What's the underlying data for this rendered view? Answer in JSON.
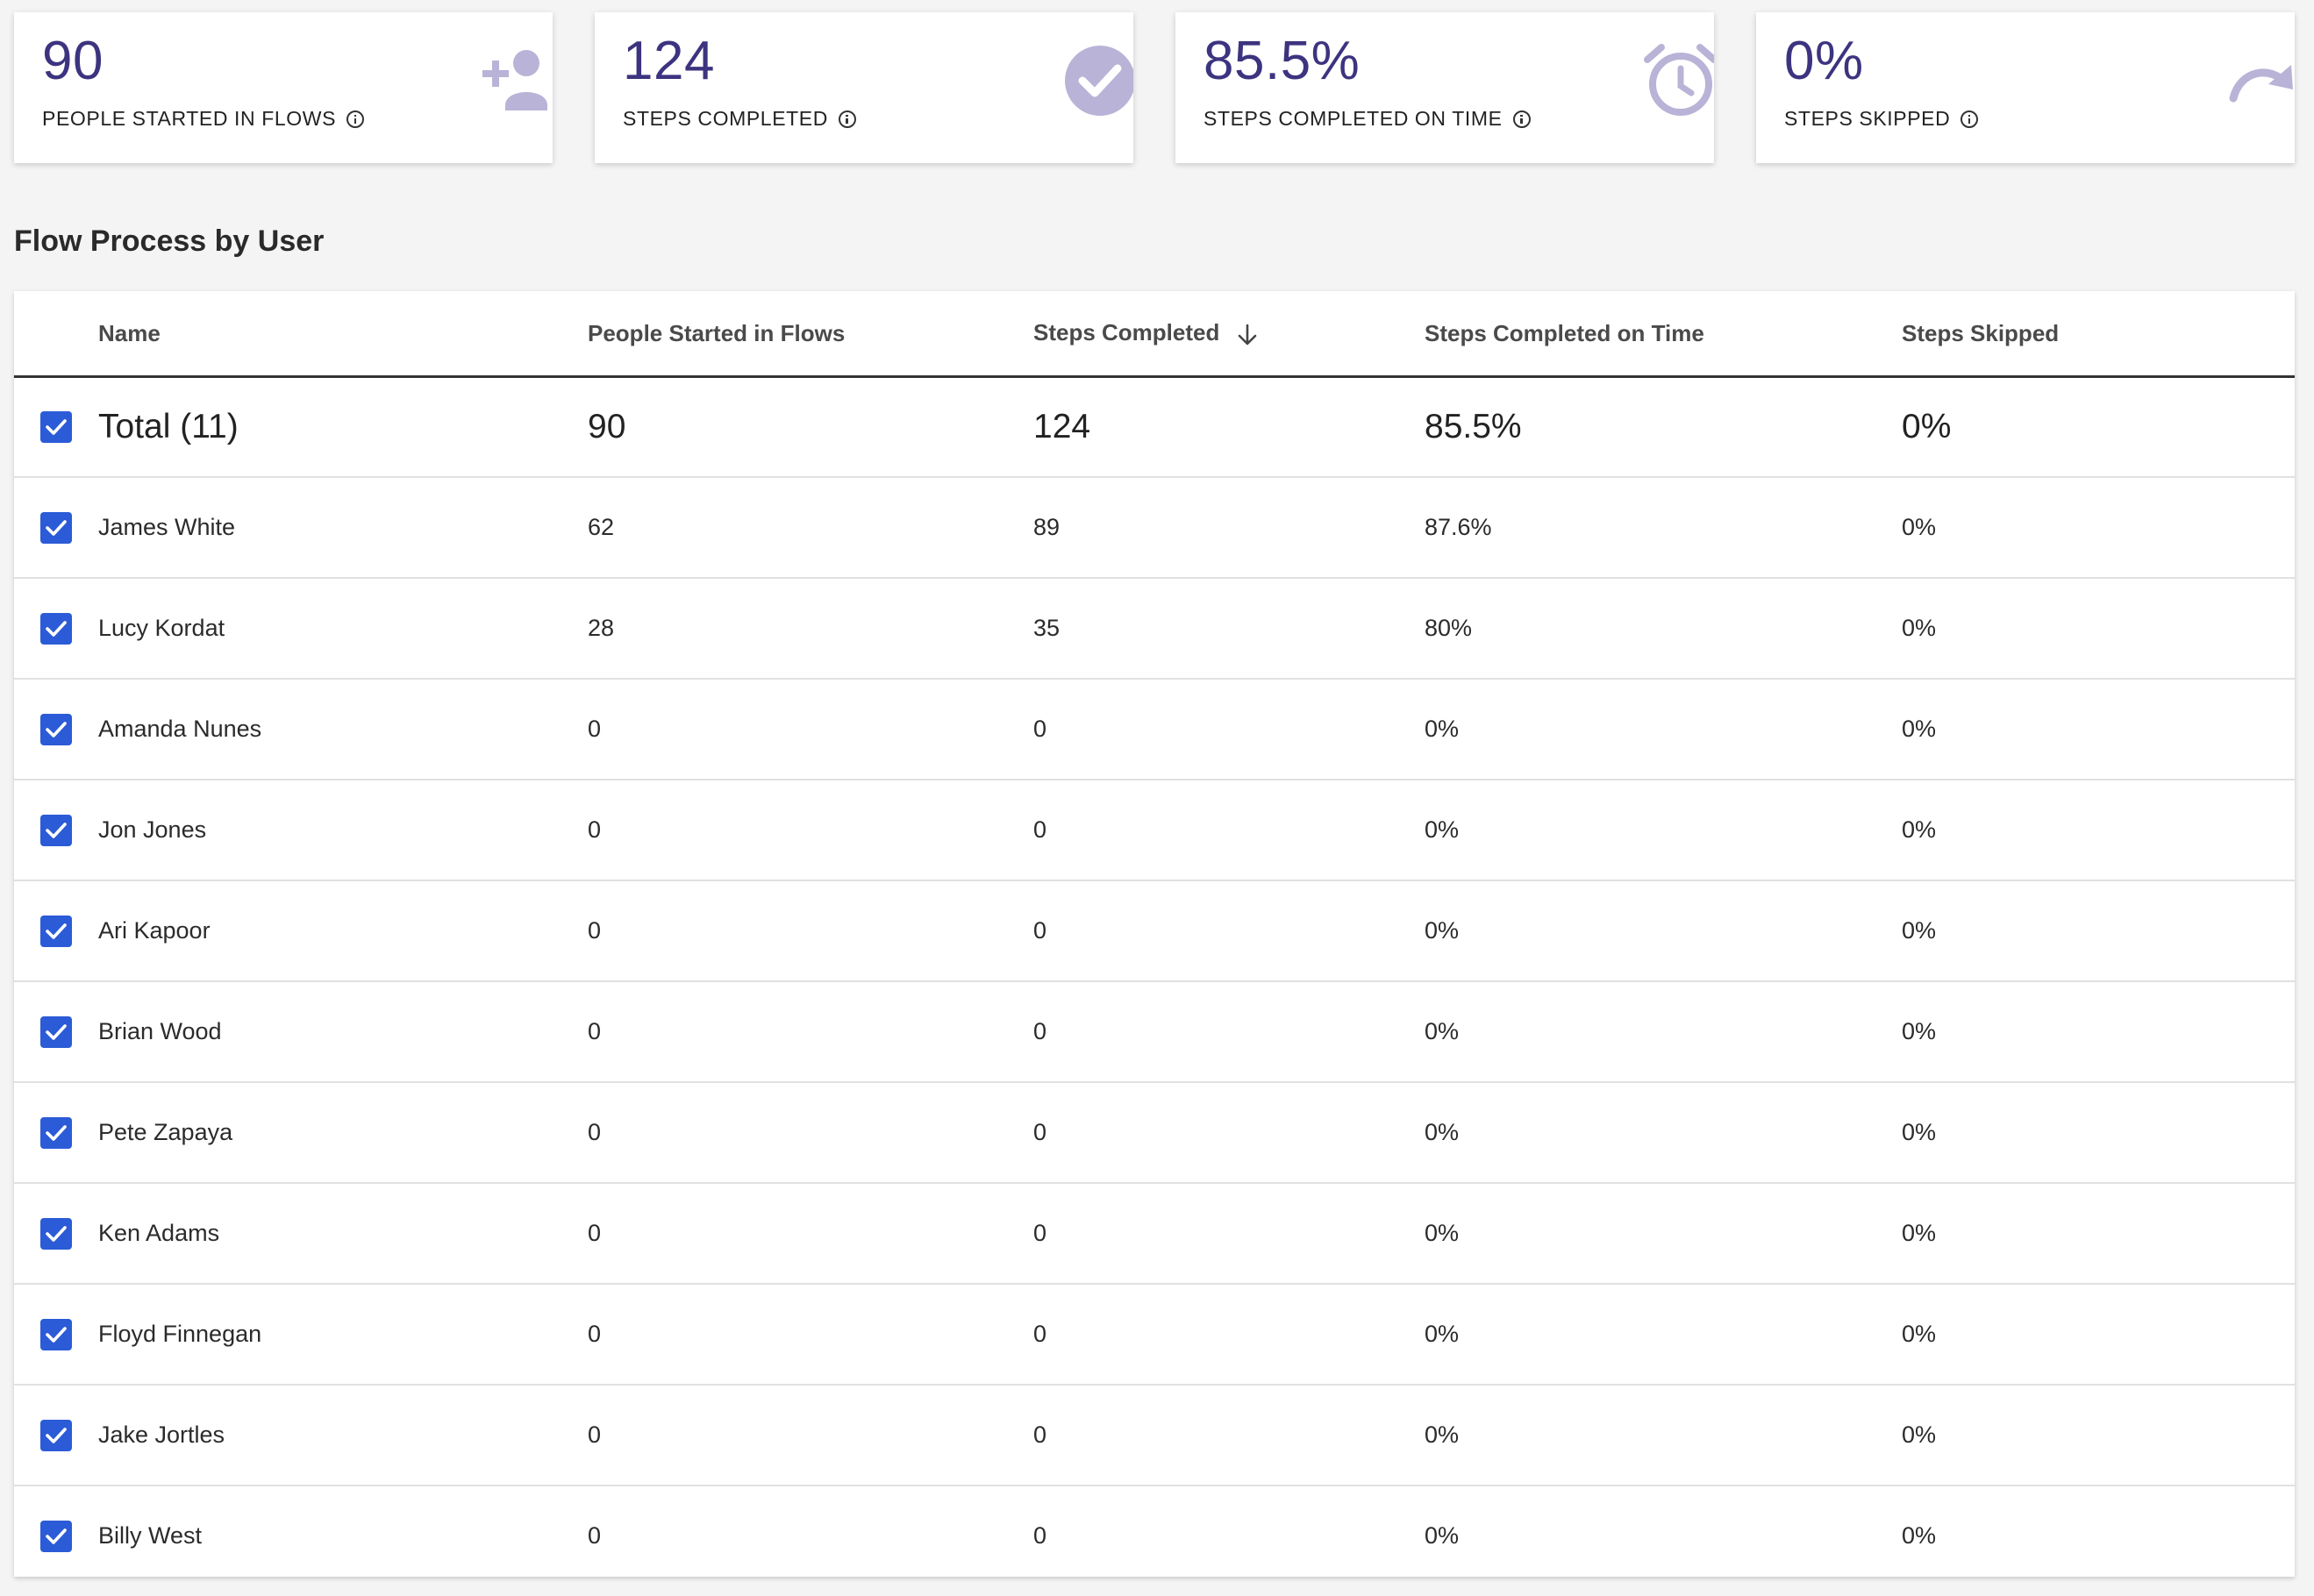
{
  "stats": [
    {
      "value": "90",
      "label": "PEOPLE STARTED IN FLOWS",
      "icon": "add-person-icon"
    },
    {
      "value": "124",
      "label": "STEPS COMPLETED",
      "icon": "check-circle-icon"
    },
    {
      "value": "85.5%",
      "label": "STEPS COMPLETED ON TIME",
      "icon": "alarm-clock-icon"
    },
    {
      "value": "0%",
      "label": "STEPS SKIPPED",
      "icon": "redo-arrow-icon"
    }
  ],
  "section": {
    "title": "Flow Process by User"
  },
  "table": {
    "headers": {
      "name": "Name",
      "started": "People Started in Flows",
      "steps": "Steps Completed",
      "ontime": "Steps Completed on Time",
      "skipped": "Steps Skipped"
    },
    "sort": {
      "column": "steps",
      "direction": "descending"
    },
    "total": {
      "name": "Total (11)",
      "started": "90",
      "steps": "124",
      "ontime": "85.5%",
      "skipped": "0%",
      "checked": true
    },
    "rows": [
      {
        "name": "James White",
        "started": "62",
        "steps": "89",
        "ontime": "87.6%",
        "skipped": "0%",
        "checked": true
      },
      {
        "name": "Lucy Kordat",
        "started": "28",
        "steps": "35",
        "ontime": "80%",
        "skipped": "0%",
        "checked": true
      },
      {
        "name": "Amanda Nunes",
        "started": "0",
        "steps": "0",
        "ontime": "0%",
        "skipped": "0%",
        "checked": true
      },
      {
        "name": "Jon Jones",
        "started": "0",
        "steps": "0",
        "ontime": "0%",
        "skipped": "0%",
        "checked": true
      },
      {
        "name": "Ari Kapoor",
        "started": "0",
        "steps": "0",
        "ontime": "0%",
        "skipped": "0%",
        "checked": true
      },
      {
        "name": "Brian Wood",
        "started": "0",
        "steps": "0",
        "ontime": "0%",
        "skipped": "0%",
        "checked": true
      },
      {
        "name": "Pete Zapaya",
        "started": "0",
        "steps": "0",
        "ontime": "0%",
        "skipped": "0%",
        "checked": true
      },
      {
        "name": "Ken Adams",
        "started": "0",
        "steps": "0",
        "ontime": "0%",
        "skipped": "0%",
        "checked": true
      },
      {
        "name": "Floyd Finnegan",
        "started": "0",
        "steps": "0",
        "ontime": "0%",
        "skipped": "0%",
        "checked": true
      },
      {
        "name": "Jake Jortles",
        "started": "0",
        "steps": "0",
        "ontime": "0%",
        "skipped": "0%",
        "checked": true
      },
      {
        "name": "Billy West",
        "started": "0",
        "steps": "0",
        "ontime": "0%",
        "skipped": "0%",
        "checked": true
      }
    ]
  },
  "colors": {
    "accent": "#3d3480",
    "icon": "#b9b3d8",
    "checkbox": "#2b5bd7"
  }
}
